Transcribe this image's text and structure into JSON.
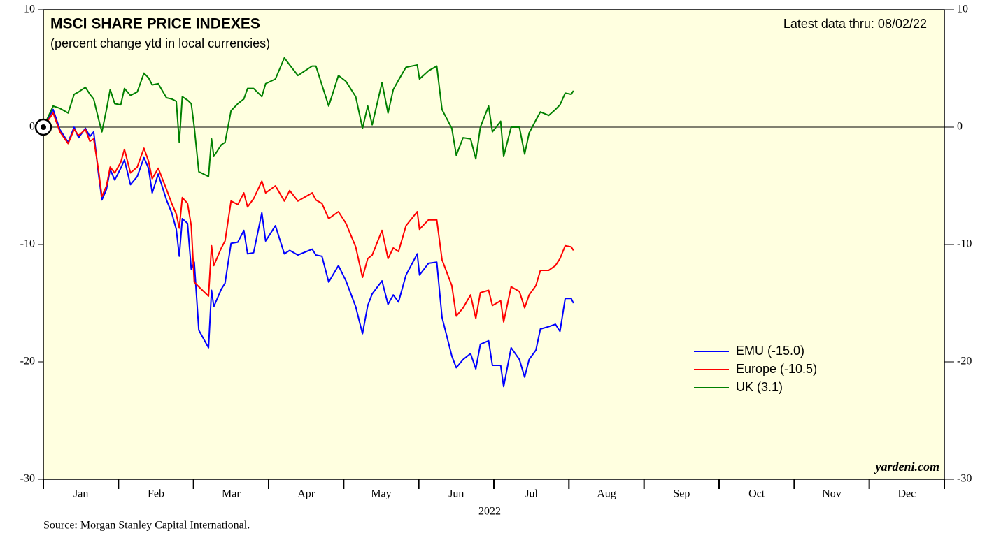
{
  "chart_data": {
    "type": "line",
    "title": "MSCI SHARE PRICE INDEXES",
    "subtitle": "(percent change ytd in local currencies)",
    "annotation": "Latest data thru: 08/02/22",
    "watermark": "yardeni.com",
    "source": "Source: Morgan Stanley Capital International.",
    "xlabel": "2022",
    "xlim": [
      0,
      12
    ],
    "xticks": [
      {
        "value": 0.5,
        "label": "Jan"
      },
      {
        "value": 1.5,
        "label": "Feb"
      },
      {
        "value": 2.5,
        "label": "Mar"
      },
      {
        "value": 3.5,
        "label": "Apr"
      },
      {
        "value": 4.5,
        "label": "May"
      },
      {
        "value": 5.5,
        "label": "Jun"
      },
      {
        "value": 6.5,
        "label": "Jul"
      },
      {
        "value": 7.5,
        "label": "Aug"
      },
      {
        "value": 8.5,
        "label": "Sep"
      },
      {
        "value": 9.5,
        "label": "Oct"
      },
      {
        "value": 10.5,
        "label": "Nov"
      },
      {
        "value": 11.5,
        "label": "Dec"
      }
    ],
    "ylim": [
      -30,
      10
    ],
    "yticks": [
      10,
      0,
      -10,
      -20,
      -30
    ],
    "y2lim": [
      -30,
      10
    ],
    "y2ticks": [
      10,
      0,
      -10,
      -20,
      -30
    ],
    "legend": "right",
    "background": "#ffffe0",
    "x": [
      0,
      0.13,
      0.22,
      0.33,
      0.41,
      0.47,
      0.56,
      0.62,
      0.67,
      0.73,
      0.78,
      0.84,
      0.89,
      0.95,
      1.03,
      1.08,
      1.16,
      1.25,
      1.34,
      1.4,
      1.45,
      1.53,
      1.64,
      1.71,
      1.77,
      1.81,
      1.85,
      1.92,
      1.97,
      2.01,
      2.07,
      2.2,
      2.24,
      2.27,
      2.37,
      2.42,
      2.5,
      2.59,
      2.67,
      2.72,
      2.8,
      2.91,
      2.96,
      3.09,
      3.21,
      3.28,
      3.39,
      3.58,
      3.63,
      3.71,
      3.8,
      3.93,
      4.03,
      4.16,
      4.25,
      4.32,
      4.38,
      4.51,
      4.59,
      4.66,
      4.73,
      4.83,
      4.98,
      5.01,
      5.13,
      5.24,
      5.31,
      5.44,
      5.5,
      5.59,
      5.69,
      5.76,
      5.82,
      5.93,
      5.98,
      6.09,
      6.13,
      6.23,
      6.34,
      6.41,
      6.47,
      6.56,
      6.62,
      6.73,
      6.82,
      6.88,
      6.95,
      7.03,
      7.06
    ],
    "series": [
      {
        "name": "EMU (-15.0)",
        "color": "#0000ff",
        "values": [
          0,
          1.5,
          -0.2,
          -1.3,
          0.0,
          -0.9,
          -0.1,
          -0.8,
          -0.4,
          -3.8,
          -6.2,
          -5.3,
          -3.6,
          -4.5,
          -3.5,
          -2.8,
          -4.9,
          -4.2,
          -2.6,
          -3.5,
          -5.6,
          -4.0,
          -6.2,
          -7.3,
          -8.7,
          -11.0,
          -7.8,
          -8.2,
          -12.1,
          -11.5,
          -17.3,
          -18.8,
          -13.9,
          -15.3,
          -13.8,
          -13.3,
          -9.9,
          -9.8,
          -8.8,
          -10.8,
          -10.7,
          -7.3,
          -9.7,
          -8.4,
          -10.8,
          -10.5,
          -10.9,
          -10.4,
          -10.9,
          -11.0,
          -13.2,
          -11.8,
          -13.1,
          -15.3,
          -17.6,
          -15.2,
          -14.2,
          -13.1,
          -15.1,
          -14.3,
          -14.9,
          -12.6,
          -10.8,
          -12.6,
          -11.6,
          -11.5,
          -16.2,
          -19.5,
          -20.5,
          -19.8,
          -19.3,
          -20.6,
          -18.5,
          -18.2,
          -20.3,
          -20.3,
          -22.1,
          -18.8,
          -19.8,
          -21.3,
          -19.8,
          -19.0,
          -17.2,
          -17.0,
          -16.8,
          -17.4,
          -14.6,
          -14.6,
          -15.0
        ]
      },
      {
        "name": "Europe (-10.5)",
        "color": "#ff0000",
        "values": [
          0,
          1.2,
          -0.4,
          -1.4,
          -0.2,
          -0.7,
          -0.2,
          -1.2,
          -1.0,
          -3.5,
          -5.9,
          -5.0,
          -3.4,
          -3.9,
          -3.0,
          -1.9,
          -3.9,
          -3.4,
          -1.8,
          -2.9,
          -4.4,
          -3.5,
          -5.3,
          -6.5,
          -7.4,
          -8.6,
          -6.0,
          -6.5,
          -8.4,
          -13.2,
          -13.6,
          -14.4,
          -10.1,
          -11.8,
          -10.3,
          -9.7,
          -6.3,
          -6.6,
          -5.6,
          -6.8,
          -6.1,
          -4.6,
          -5.6,
          -5.0,
          -6.3,
          -5.4,
          -6.3,
          -5.6,
          -6.2,
          -6.5,
          -7.8,
          -7.2,
          -8.2,
          -10.2,
          -12.8,
          -11.2,
          -10.9,
          -8.8,
          -11.2,
          -10.3,
          -10.6,
          -8.4,
          -7.2,
          -8.7,
          -7.9,
          -7.9,
          -11.3,
          -13.5,
          -16.1,
          -15.4,
          -14.3,
          -16.3,
          -14.1,
          -13.9,
          -15.2,
          -14.8,
          -16.6,
          -13.6,
          -14.0,
          -15.4,
          -14.3,
          -13.5,
          -12.2,
          -12.2,
          -11.8,
          -11.2,
          -10.1,
          -10.2,
          -10.5
        ]
      },
      {
        "name": "UK (3.1)",
        "color": "#008000",
        "values": [
          0,
          1.8,
          1.6,
          1.2,
          2.8,
          3.0,
          3.4,
          2.8,
          2.4,
          0.8,
          -0.4,
          1.5,
          3.2,
          2.0,
          1.9,
          3.3,
          2.7,
          3.0,
          4.6,
          4.2,
          3.6,
          3.7,
          2.5,
          2.4,
          2.2,
          -1.3,
          2.6,
          2.3,
          2.0,
          0.0,
          -3.8,
          -4.2,
          -1.0,
          -2.5,
          -1.5,
          -1.3,
          1.4,
          2.0,
          2.4,
          3.3,
          3.3,
          2.6,
          3.7,
          4.1,
          5.9,
          5.3,
          4.4,
          5.2,
          5.2,
          3.6,
          1.8,
          4.4,
          3.9,
          2.6,
          -0.1,
          1.8,
          0.2,
          3.8,
          1.2,
          3.2,
          4.0,
          5.1,
          5.3,
          4.1,
          4.8,
          5.2,
          1.5,
          -0.1,
          -2.4,
          -0.9,
          -1.0,
          -2.7,
          0.0,
          1.8,
          -0.4,
          0.5,
          -2.5,
          0.0,
          0.0,
          -2.3,
          -0.5,
          0.6,
          1.3,
          1.0,
          1.5,
          1.9,
          2.9,
          2.8,
          3.1
        ]
      }
    ]
  }
}
